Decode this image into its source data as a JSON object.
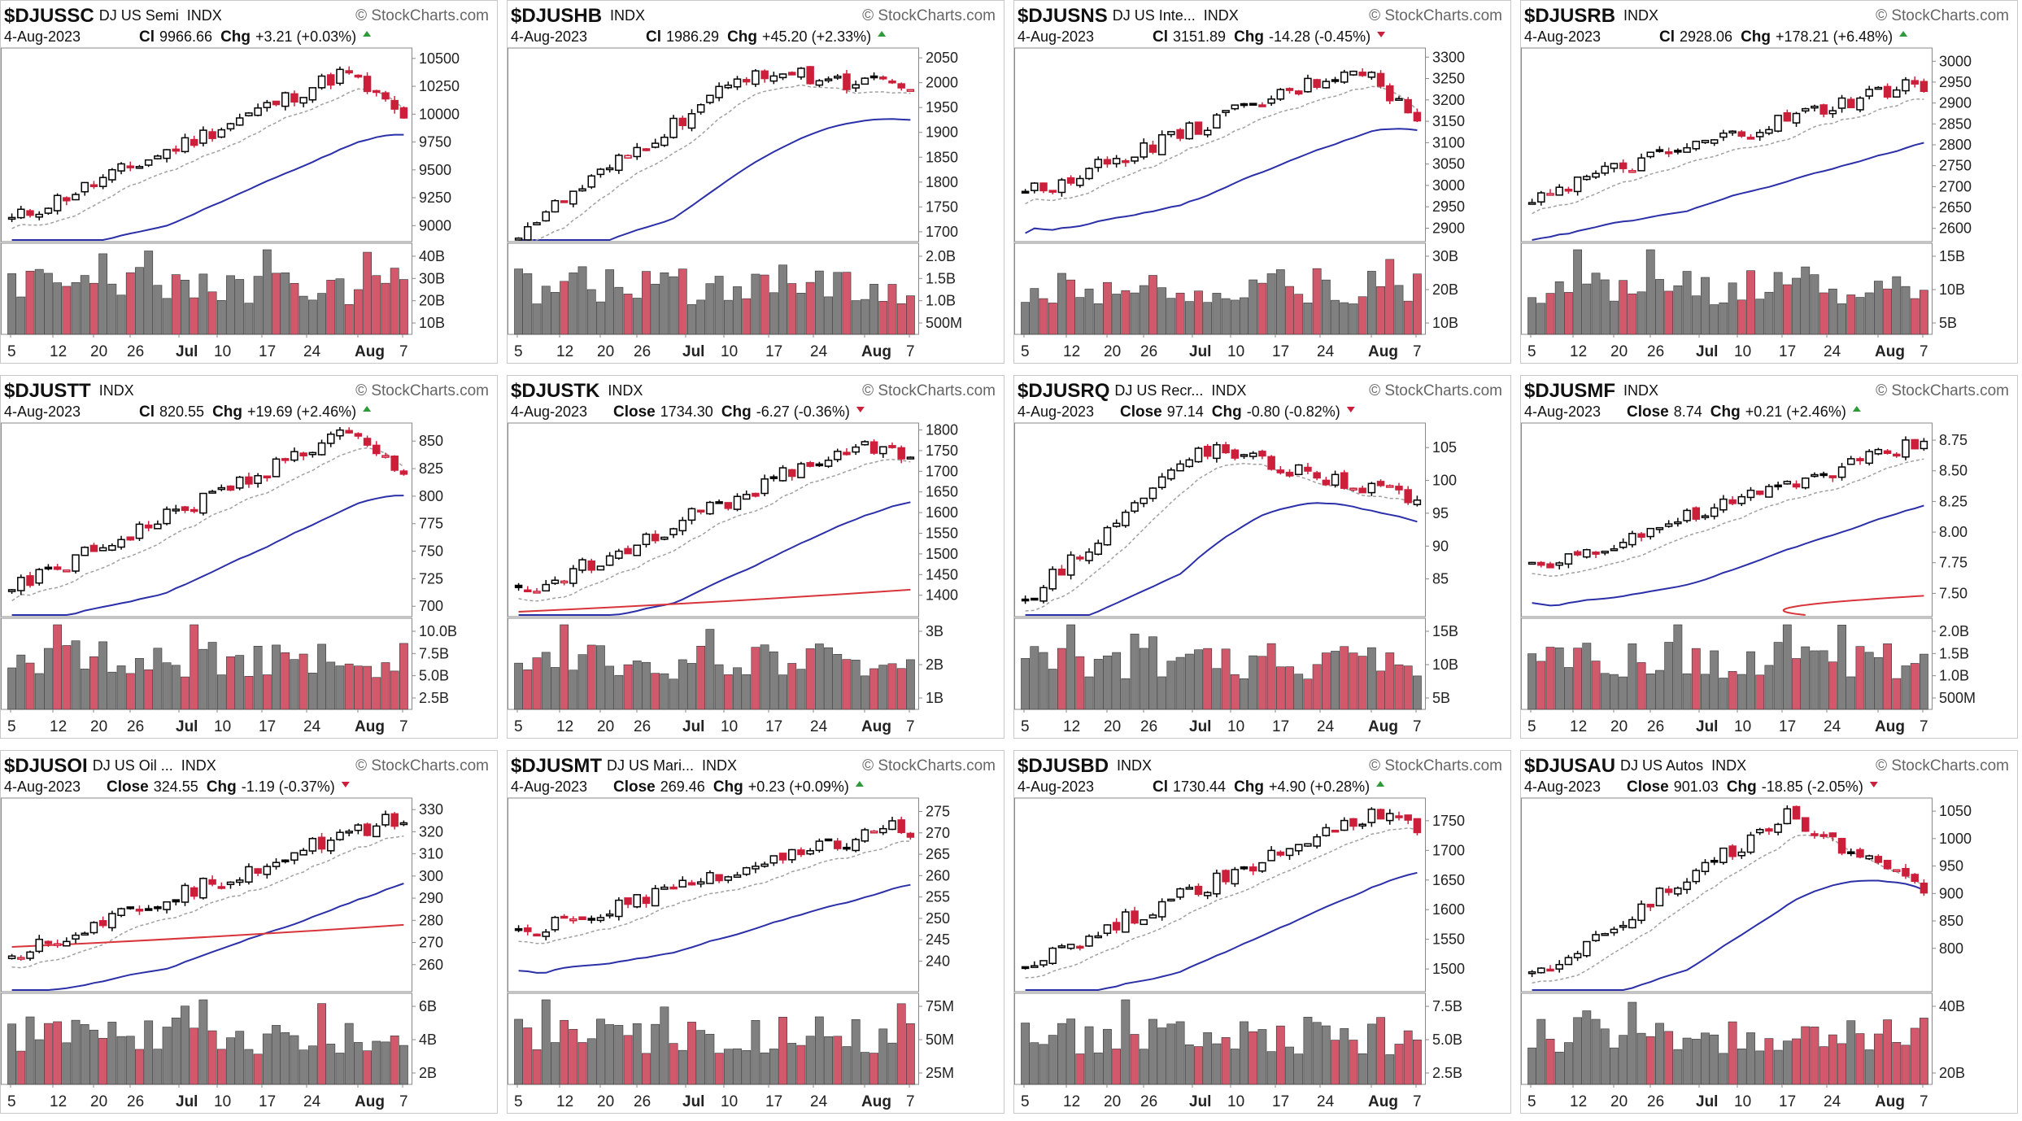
{
  "watermark": "StockCharts.com",
  "date": "4-Aug-2023",
  "exchange": "INDX",
  "x_labels": [
    {
      "label": "5",
      "bold": false
    },
    {
      "label": "12",
      "bold": false
    },
    {
      "label": "20",
      "bold": false
    },
    {
      "label": "26",
      "bold": false
    },
    {
      "label": "Jul",
      "bold": true
    },
    {
      "label": "10",
      "bold": false
    },
    {
      "label": "17",
      "bold": false
    },
    {
      "label": "24",
      "bold": false
    },
    {
      "label": "Aug",
      "bold": true
    },
    {
      "label": "7",
      "bold": false
    }
  ],
  "colors": {
    "up": "#000000",
    "down": "#cc1f3a",
    "vol_up": "#808080",
    "vol_down": "#d2596c",
    "ma_slow": "#2b2fa8",
    "ma_fast": "#a0a0a0",
    "ma_red": "#d8343a",
    "arrow_up": "#2e9a3a",
    "arrow_down": "#cc1f3a"
  },
  "chart_data": [
    {
      "type": "candlestick",
      "symbol": "$DJUSSC",
      "name": "DJ US Semi",
      "close_label": "Cl",
      "close": "9966.66",
      "chg": "+3.21 (+0.03%)",
      "dir": "up",
      "yticks": [
        "10500",
        "10250",
        "10000",
        "9750",
        "9500",
        "9250",
        "9000"
      ],
      "ymin": 8900,
      "ymax": 10550,
      "start": 9050,
      "end": 9966,
      "peak": 10380,
      "peak_at": 0.85,
      "ma_red": null,
      "vticks": [
        "40B",
        "30B",
        "20B",
        "10B"
      ],
      "vmax": 45
    },
    {
      "type": "candlestick",
      "symbol": "$DJUSHB",
      "name": "",
      "close_label": "Cl",
      "close": "1986.29",
      "chg": "+45.20 (+2.33%)",
      "dir": "up",
      "yticks": [
        "2050",
        "2000",
        "1950",
        "1900",
        "1850",
        "1800",
        "1750",
        "1700"
      ],
      "ymin": 1690,
      "ymax": 2060,
      "start": 1700,
      "end": 1986,
      "peak": 2025,
      "peak_at": 0.6,
      "ma_red": null,
      "vticks": [
        "2.0B",
        "1.5B",
        "1.0B",
        "500M"
      ],
      "vmax": 2.2
    },
    {
      "type": "candlestick",
      "symbol": "$DJUSNS",
      "name": "DJ US Inte...",
      "close_label": "Cl",
      "close": "3151.89",
      "chg": "-14.28 (-0.45%)",
      "dir": "down",
      "yticks": [
        "3300",
        "3250",
        "3200",
        "3150",
        "3100",
        "3050",
        "3000",
        "2950",
        "2900"
      ],
      "ymin": 2880,
      "ymax": 3310,
      "start": 2980,
      "end": 3151,
      "peak": 3280,
      "peak_at": 0.85,
      "ma_red": null,
      "vticks": [
        "30B",
        "20B",
        "10B"
      ],
      "vmax": 32
    },
    {
      "type": "candlestick",
      "symbol": "$DJUSRB",
      "name": "",
      "close_label": "Cl",
      "close": "2928.06",
      "chg": "+178.21 (+6.48%)",
      "dir": "up",
      "yticks": [
        "3000",
        "2950",
        "2900",
        "2850",
        "2800",
        "2750",
        "2700",
        "2650",
        "2600"
      ],
      "ymin": 2580,
      "ymax": 3020,
      "start": 2680,
      "end": 2928,
      "peak": 2950,
      "peak_at": 0.98,
      "ma_red": null,
      "vticks": [
        "15B",
        "10B",
        "5B"
      ],
      "vmax": 18
    },
    {
      "type": "candlestick",
      "symbol": "$DJUSTT",
      "name": "",
      "close_label": "Cl",
      "close": "820.55",
      "chg": "+19.69 (+2.46%)",
      "dir": "up",
      "yticks": [
        "850",
        "825",
        "800",
        "775",
        "750",
        "725",
        "700"
      ],
      "ymin": 695,
      "ymax": 862,
      "start": 715,
      "end": 820,
      "peak": 858,
      "peak_at": 0.85,
      "ma_red": null,
      "vticks": [
        "10.0B",
        "7.5B",
        "5.0B",
        "2.5B"
      ],
      "vmax": 11
    },
    {
      "type": "candlestick",
      "symbol": "$DJUSTK",
      "name": "",
      "close_label": "Close",
      "close": "1734.30",
      "chg": "-6.27 (-0.36%)",
      "dir": "down",
      "yticks": [
        "1800",
        "1750",
        "1700",
        "1650",
        "1600",
        "1550",
        "1500",
        "1450",
        "1400"
      ],
      "ymin": 1360,
      "ymax": 1805,
      "start": 1400,
      "end": 1734,
      "peak": 1765,
      "peak_at": 0.85,
      "ma_red": 1360,
      "vticks": [
        "3B",
        "2B",
        "1B"
      ],
      "vmax": 3.4
    },
    {
      "type": "candlestick",
      "symbol": "$DJUSRQ",
      "name": "DJ US Recr...",
      "close_label": "Close",
      "close": "97.14",
      "chg": "-0.80 (-0.82%)",
      "dir": "down",
      "yticks": [
        "105",
        "100",
        "95",
        "90",
        "85"
      ],
      "ymin": 80,
      "ymax": 108,
      "start": 82,
      "end": 97,
      "peak": 105,
      "peak_at": 0.45,
      "ma_red": null,
      "vticks": [
        "15B",
        "10B",
        "5B"
      ],
      "vmax": 17
    },
    {
      "type": "candlestick",
      "symbol": "$DJUSMF",
      "name": "",
      "close_label": "Close",
      "close": "8.74",
      "chg": "+0.21 (+2.46%)",
      "dir": "up",
      "yticks": [
        "8.75",
        "8.50",
        "8.25",
        "8.00",
        "7.75",
        "7.50"
      ],
      "ymin": 7.35,
      "ymax": 8.85,
      "start": 7.7,
      "end": 8.74,
      "peak": 8.74,
      "peak_at": 0.99,
      "ma_red": 7.3,
      "vticks": [
        "2.0B",
        "1.5B",
        "1.0B",
        "500M"
      ],
      "vmax": 2.1
    },
    {
      "type": "candlestick",
      "symbol": "$DJUSOI",
      "name": "DJ US Oil ...",
      "close_label": "Close",
      "close": "324.55",
      "chg": "-1.19 (-0.37%)",
      "dir": "down",
      "yticks": [
        "330",
        "320",
        "310",
        "300",
        "290",
        "280",
        "270",
        "260"
      ],
      "ymin": 250,
      "ymax": 333,
      "start": 265,
      "end": 324,
      "peak": 326,
      "peak_at": 0.97,
      "ma_red": 268,
      "vticks": [
        "6B",
        "4B",
        "2B"
      ],
      "vmax": 7
    },
    {
      "type": "candlestick",
      "symbol": "$DJUSMT",
      "name": "DJ US Mari...",
      "close_label": "Close",
      "close": "269.46",
      "chg": "+0.23 (+0.09%)",
      "dir": "up",
      "yticks": [
        "275",
        "270",
        "265",
        "260",
        "255",
        "250",
        "245",
        "240"
      ],
      "ymin": 234,
      "ymax": 277,
      "start": 246,
      "end": 269,
      "peak": 272,
      "peak_at": 0.98,
      "ma_red": null,
      "vticks": [
        "75M",
        "50M",
        "25M"
      ],
      "vmax": 80
    },
    {
      "type": "candlestick",
      "symbol": "$DJUSBD",
      "name": "",
      "close_label": "Cl",
      "close": "1730.44",
      "chg": "+4.90 (+0.28%)",
      "dir": "up",
      "yticks": [
        "1750",
        "1700",
        "1650",
        "1600",
        "1550",
        "1500"
      ],
      "ymin": 1470,
      "ymax": 1780,
      "start": 1510,
      "end": 1730,
      "peak": 1765,
      "peak_at": 0.9,
      "ma_red": null,
      "vticks": [
        "7.5B",
        "5.0B",
        "2.5B"
      ],
      "vmax": 8
    },
    {
      "type": "candlestick",
      "symbol": "$DJUSAU",
      "name": "DJ US Autos",
      "close_label": "Close",
      "close": "901.03",
      "chg": "-18.85 (-2.05%)",
      "dir": "down",
      "yticks": [
        "1050",
        "1000",
        "950",
        "900",
        "850",
        "800"
      ],
      "ymin": 730,
      "ymax": 1065,
      "start": 750,
      "end": 901,
      "peak": 1040,
      "peak_at": 0.65,
      "ma_red": null,
      "vticks": [
        "40B",
        "20B"
      ],
      "vmax": 48
    }
  ]
}
